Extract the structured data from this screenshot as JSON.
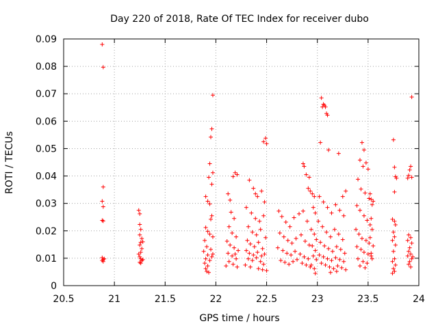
{
  "chart_data": {
    "type": "scatter",
    "title": "Day 220 of 2018, Rate Of TEC Index for receiver dubo",
    "xlabel": "GPS time / hours",
    "ylabel": "ROTI / TECUs",
    "xlim": [
      20.5,
      24
    ],
    "ylim": [
      0,
      0.09
    ],
    "x_ticks": [
      "20.5",
      "21",
      "21.5",
      "22",
      "22.5",
      "23",
      "23.5",
      "24"
    ],
    "y_ticks": [
      "0",
      "0.01",
      "0.02",
      "0.03",
      "0.04",
      "0.05",
      "0.06",
      "0.07",
      "0.08",
      "0.09"
    ],
    "grid": true,
    "marker": "+",
    "color": "#ff0000",
    "series": [
      {
        "points": [
          [
            20.88,
            0.088
          ],
          [
            20.89,
            0.0797
          ],
          [
            20.89,
            0.036
          ],
          [
            20.88,
            0.0308
          ],
          [
            20.89,
            0.0288
          ],
          [
            20.88,
            0.0238
          ],
          [
            20.89,
            0.0236
          ],
          [
            20.88,
            0.0102
          ],
          [
            20.89,
            0.0095
          ],
          [
            20.88,
            0.0092
          ],
          [
            20.9,
            0.0098
          ],
          [
            20.89,
            0.0088
          ],
          [
            21.24,
            0.0275
          ],
          [
            21.25,
            0.0262
          ],
          [
            21.25,
            0.0223
          ],
          [
            21.26,
            0.0205
          ],
          [
            21.25,
            0.0185
          ],
          [
            21.27,
            0.0172
          ],
          [
            21.26,
            0.0158
          ],
          [
            21.25,
            0.0148
          ],
          [
            21.27,
            0.0135
          ],
          [
            21.26,
            0.0122
          ],
          [
            21.25,
            0.0105
          ],
          [
            21.26,
            0.0098
          ],
          [
            21.27,
            0.0092
          ],
          [
            21.25,
            0.0085
          ],
          [
            21.26,
            0.0082
          ],
          [
            21.28,
            0.0095
          ],
          [
            21.24,
            0.0115
          ],
          [
            21.28,
            0.016
          ],
          [
            21.97,
            0.0695
          ],
          [
            21.96,
            0.0572
          ],
          [
            21.95,
            0.0542
          ],
          [
            21.94,
            0.0445
          ],
          [
            21.97,
            0.0412
          ],
          [
            21.96,
            0.037
          ],
          [
            21.93,
            0.0395
          ],
          [
            21.9,
            0.0325
          ],
          [
            21.92,
            0.0308
          ],
          [
            21.94,
            0.0298
          ],
          [
            21.96,
            0.0255
          ],
          [
            21.95,
            0.0242
          ],
          [
            21.9,
            0.0212
          ],
          [
            21.92,
            0.0198
          ],
          [
            21.94,
            0.0188
          ],
          [
            21.97,
            0.0178
          ],
          [
            21.89,
            0.0165
          ],
          [
            21.91,
            0.0142
          ],
          [
            21.95,
            0.0132
          ],
          [
            21.88,
            0.0125
          ],
          [
            21.92,
            0.0112
          ],
          [
            21.96,
            0.0105
          ],
          [
            21.9,
            0.0098
          ],
          [
            21.94,
            0.0092
          ],
          [
            21.89,
            0.0082
          ],
          [
            21.92,
            0.0072
          ],
          [
            21.9,
            0.0062
          ],
          [
            21.91,
            0.0052
          ],
          [
            21.93,
            0.0048
          ],
          [
            21.97,
            0.0115
          ],
          [
            22.12,
            0.0335
          ],
          [
            22.14,
            0.0312
          ],
          [
            22.17,
            0.0398
          ],
          [
            22.19,
            0.0412
          ],
          [
            22.21,
            0.0405
          ],
          [
            22.15,
            0.0268
          ],
          [
            22.18,
            0.0245
          ],
          [
            22.13,
            0.0215
          ],
          [
            22.16,
            0.0192
          ],
          [
            22.2,
            0.0178
          ],
          [
            22.11,
            0.0162
          ],
          [
            22.14,
            0.0148
          ],
          [
            22.18,
            0.0138
          ],
          [
            22.22,
            0.0128
          ],
          [
            22.12,
            0.0118
          ],
          [
            22.16,
            0.0108
          ],
          [
            22.2,
            0.0098
          ],
          [
            22.13,
            0.0088
          ],
          [
            22.17,
            0.0078
          ],
          [
            22.21,
            0.0068
          ],
          [
            22.1,
            0.0072
          ],
          [
            22.19,
            0.0115
          ],
          [
            22.47,
            0.0525
          ],
          [
            22.49,
            0.0538
          ],
          [
            22.5,
            0.0518
          ],
          [
            22.33,
            0.0385
          ],
          [
            22.37,
            0.0355
          ],
          [
            22.41,
            0.0325
          ],
          [
            22.45,
            0.0345
          ],
          [
            22.48,
            0.0305
          ],
          [
            22.3,
            0.0285
          ],
          [
            22.35,
            0.0265
          ],
          [
            22.39,
            0.0245
          ],
          [
            22.43,
            0.0235
          ],
          [
            22.47,
            0.0255
          ],
          [
            22.32,
            0.0215
          ],
          [
            22.36,
            0.0195
          ],
          [
            22.4,
            0.0185
          ],
          [
            22.44,
            0.0205
          ],
          [
            22.49,
            0.0175
          ],
          [
            22.31,
            0.0165
          ],
          [
            22.34,
            0.0152
          ],
          [
            22.38,
            0.0142
          ],
          [
            22.42,
            0.0158
          ],
          [
            22.46,
            0.0135
          ],
          [
            22.3,
            0.0128
          ],
          [
            22.33,
            0.0118
          ],
          [
            22.37,
            0.0112
          ],
          [
            22.41,
            0.0122
          ],
          [
            22.45,
            0.0108
          ],
          [
            22.48,
            0.0115
          ],
          [
            22.32,
            0.0098
          ],
          [
            22.36,
            0.0092
          ],
          [
            22.4,
            0.0102
          ],
          [
            22.44,
            0.0088
          ],
          [
            22.47,
            0.0078
          ],
          [
            22.34,
            0.0068
          ],
          [
            22.42,
            0.0062
          ],
          [
            22.46,
            0.0058
          ],
          [
            22.5,
            0.0055
          ],
          [
            22.29,
            0.0075
          ],
          [
            22.39,
            0.0335
          ],
          [
            22.62,
            0.0272
          ],
          [
            22.65,
            0.0252
          ],
          [
            22.69,
            0.0232
          ],
          [
            22.73,
            0.0215
          ],
          [
            22.77,
            0.0248
          ],
          [
            22.82,
            0.0262
          ],
          [
            22.86,
            0.0272
          ],
          [
            22.9,
            0.0235
          ],
          [
            22.63,
            0.0192
          ],
          [
            22.67,
            0.0178
          ],
          [
            22.71,
            0.0165
          ],
          [
            22.75,
            0.0155
          ],
          [
            22.79,
            0.0172
          ],
          [
            22.84,
            0.0185
          ],
          [
            22.88,
            0.0162
          ],
          [
            22.92,
            0.0148
          ],
          [
            22.61,
            0.0138
          ],
          [
            22.66,
            0.0128
          ],
          [
            22.7,
            0.0118
          ],
          [
            22.74,
            0.0112
          ],
          [
            22.78,
            0.0125
          ],
          [
            22.83,
            0.0115
          ],
          [
            22.87,
            0.0105
          ],
          [
            22.91,
            0.0098
          ],
          [
            22.64,
            0.0092
          ],
          [
            22.68,
            0.0085
          ],
          [
            22.72,
            0.0078
          ],
          [
            22.76,
            0.0088
          ],
          [
            22.8,
            0.0095
          ],
          [
            22.85,
            0.0082
          ],
          [
            22.89,
            0.0075
          ],
          [
            22.93,
            0.0068
          ],
          [
            22.86,
            0.0445
          ],
          [
            22.87,
            0.0435
          ],
          [
            22.89,
            0.0405
          ],
          [
            22.91,
            0.0355
          ],
          [
            22.93,
            0.0345
          ],
          [
            22.95,
            0.0335
          ],
          [
            22.97,
            0.0325
          ],
          [
            22.96,
            0.0285
          ],
          [
            22.98,
            0.0265
          ],
          [
            22.94,
            0.0205
          ],
          [
            22.97,
            0.0188
          ],
          [
            22.99,
            0.0168
          ],
          [
            22.95,
            0.0145
          ],
          [
            22.98,
            0.0128
          ],
          [
            22.96,
            0.0108
          ],
          [
            22.99,
            0.0095
          ],
          [
            22.94,
            0.0075
          ],
          [
            22.97,
            0.0062
          ],
          [
            22.98,
            0.0045
          ],
          [
            22.92,
            0.0395
          ],
          [
            23.04,
            0.0685
          ],
          [
            23.05,
            0.0652
          ],
          [
            23.06,
            0.0662
          ],
          [
            23.07,
            0.0658
          ],
          [
            23.08,
            0.0652
          ],
          [
            23.09,
            0.0628
          ],
          [
            23.1,
            0.0622
          ],
          [
            23.03,
            0.0522
          ],
          [
            23.11,
            0.0495
          ],
          [
            23.21,
            0.0482
          ],
          [
            23.02,
            0.0325
          ],
          [
            23.06,
            0.0305
          ],
          [
            23.1,
            0.0285
          ],
          [
            23.14,
            0.0265
          ],
          [
            23.18,
            0.0295
          ],
          [
            23.22,
            0.0275
          ],
          [
            23.26,
            0.0255
          ],
          [
            23.01,
            0.0235
          ],
          [
            23.05,
            0.0215
          ],
          [
            23.09,
            0.0195
          ],
          [
            23.13,
            0.0178
          ],
          [
            23.17,
            0.0205
          ],
          [
            23.21,
            0.0188
          ],
          [
            23.25,
            0.0168
          ],
          [
            23.03,
            0.0158
          ],
          [
            23.07,
            0.0145
          ],
          [
            23.11,
            0.0135
          ],
          [
            23.15,
            0.0125
          ],
          [
            23.19,
            0.0142
          ],
          [
            23.23,
            0.0132
          ],
          [
            23.27,
            0.0118
          ],
          [
            23.02,
            0.0112
          ],
          [
            23.06,
            0.0105
          ],
          [
            23.1,
            0.0098
          ],
          [
            23.14,
            0.0092
          ],
          [
            23.18,
            0.0102
          ],
          [
            23.22,
            0.0095
          ],
          [
            23.26,
            0.0088
          ],
          [
            23.04,
            0.0082
          ],
          [
            23.08,
            0.0075
          ],
          [
            23.12,
            0.0068
          ],
          [
            23.16,
            0.0062
          ],
          [
            23.2,
            0.0072
          ],
          [
            23.24,
            0.0065
          ],
          [
            23.28,
            0.0058
          ],
          [
            23.13,
            0.0048
          ],
          [
            23.19,
            0.0052
          ],
          [
            23.25,
            0.0325
          ],
          [
            23.28,
            0.0345
          ],
          [
            23.44,
            0.0522
          ],
          [
            23.46,
            0.0495
          ],
          [
            23.42,
            0.0458
          ],
          [
            23.45,
            0.0435
          ],
          [
            23.48,
            0.0448
          ],
          [
            23.5,
            0.0425
          ],
          [
            23.4,
            0.0388
          ],
          [
            23.43,
            0.0352
          ],
          [
            23.47,
            0.0338
          ],
          [
            23.51,
            0.0318
          ],
          [
            23.39,
            0.0292
          ],
          [
            23.42,
            0.0275
          ],
          [
            23.46,
            0.0255
          ],
          [
            23.49,
            0.0238
          ],
          [
            23.52,
            0.0222
          ],
          [
            23.38,
            0.0205
          ],
          [
            23.41,
            0.0188
          ],
          [
            23.44,
            0.0172
          ],
          [
            23.48,
            0.0165
          ],
          [
            23.51,
            0.0155
          ],
          [
            23.39,
            0.0142
          ],
          [
            23.43,
            0.0132
          ],
          [
            23.46,
            0.0122
          ],
          [
            23.5,
            0.0115
          ],
          [
            23.53,
            0.0108
          ],
          [
            23.4,
            0.0098
          ],
          [
            23.45,
            0.0088
          ],
          [
            23.49,
            0.0082
          ],
          [
            23.42,
            0.0072
          ],
          [
            23.47,
            0.0065
          ],
          [
            23.53,
            0.0315
          ],
          [
            23.54,
            0.0295
          ],
          [
            23.52,
            0.0335
          ],
          [
            23.55,
            0.0308
          ],
          [
            23.53,
            0.0245
          ],
          [
            23.54,
            0.0205
          ],
          [
            23.52,
            0.0175
          ],
          [
            23.55,
            0.0145
          ],
          [
            23.53,
            0.0118
          ],
          [
            23.54,
            0.0098
          ],
          [
            23.75,
            0.0532
          ],
          [
            23.76,
            0.0432
          ],
          [
            23.77,
            0.0398
          ],
          [
            23.78,
            0.0392
          ],
          [
            23.76,
            0.0342
          ],
          [
            23.74,
            0.0242
          ],
          [
            23.76,
            0.0235
          ],
          [
            23.77,
            0.0222
          ],
          [
            23.75,
            0.0195
          ],
          [
            23.76,
            0.0178
          ],
          [
            23.74,
            0.0165
          ],
          [
            23.77,
            0.0148
          ],
          [
            23.75,
            0.0125
          ],
          [
            23.76,
            0.0098
          ],
          [
            23.74,
            0.0088
          ],
          [
            23.77,
            0.0075
          ],
          [
            23.75,
            0.0062
          ],
          [
            23.76,
            0.0052
          ],
          [
            23.74,
            0.0045
          ],
          [
            23.93,
            0.0688
          ],
          [
            23.92,
            0.0435
          ],
          [
            23.91,
            0.0422
          ],
          [
            23.9,
            0.0402
          ],
          [
            23.89,
            0.0392
          ],
          [
            23.93,
            0.0395
          ],
          [
            23.9,
            0.0185
          ],
          [
            23.92,
            0.0175
          ],
          [
            23.89,
            0.0165
          ],
          [
            23.93,
            0.0155
          ],
          [
            23.91,
            0.0138
          ],
          [
            23.9,
            0.0125
          ],
          [
            23.92,
            0.0115
          ],
          [
            23.89,
            0.0108
          ],
          [
            23.93,
            0.0098
          ],
          [
            23.91,
            0.0088
          ],
          [
            23.9,
            0.0078
          ],
          [
            23.92,
            0.0068
          ],
          [
            23.94,
            0.0105
          ]
        ]
      }
    ]
  }
}
